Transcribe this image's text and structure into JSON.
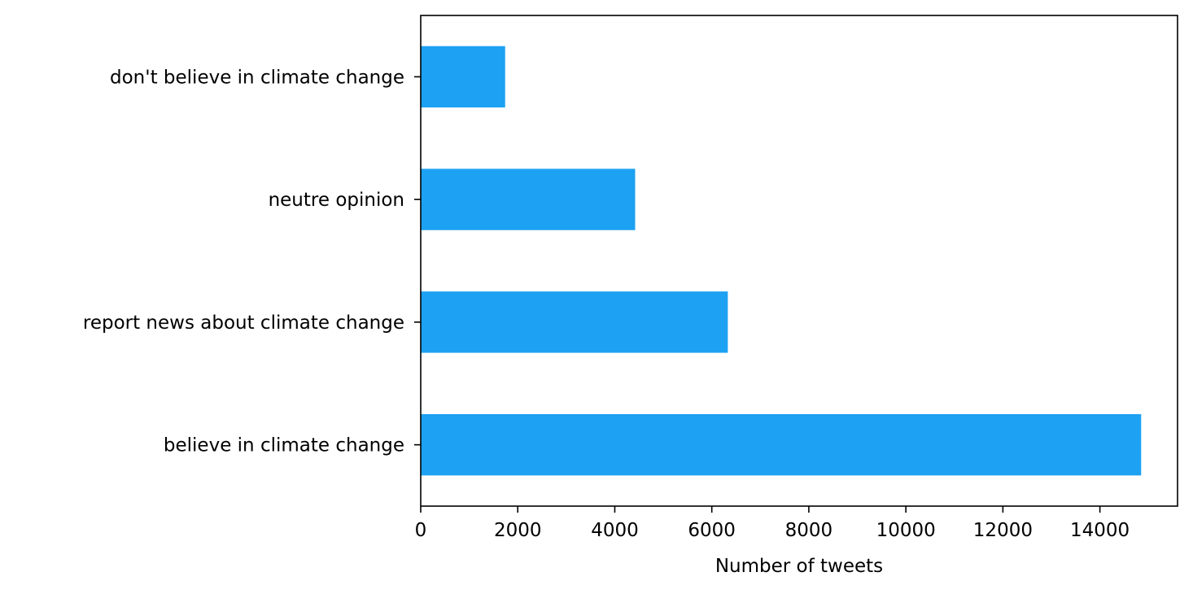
{
  "chart_data": {
    "type": "bar",
    "orientation": "horizontal",
    "categories": [
      "believe in climate change",
      "report news about climate change",
      "neutre opinion",
      "don't believe in climate change"
    ],
    "values": [
      14850,
      6330,
      4420,
      1740
    ],
    "title": "",
    "xlabel": "Number of tweets",
    "ylabel": "",
    "xlim": [
      0,
      15600
    ],
    "xticks": [
      0,
      2000,
      4000,
      6000,
      8000,
      10000,
      12000,
      14000
    ],
    "grid": false,
    "legend": false,
    "colors": {
      "bar": "#1DA1F2",
      "axis": "#000000"
    }
  }
}
